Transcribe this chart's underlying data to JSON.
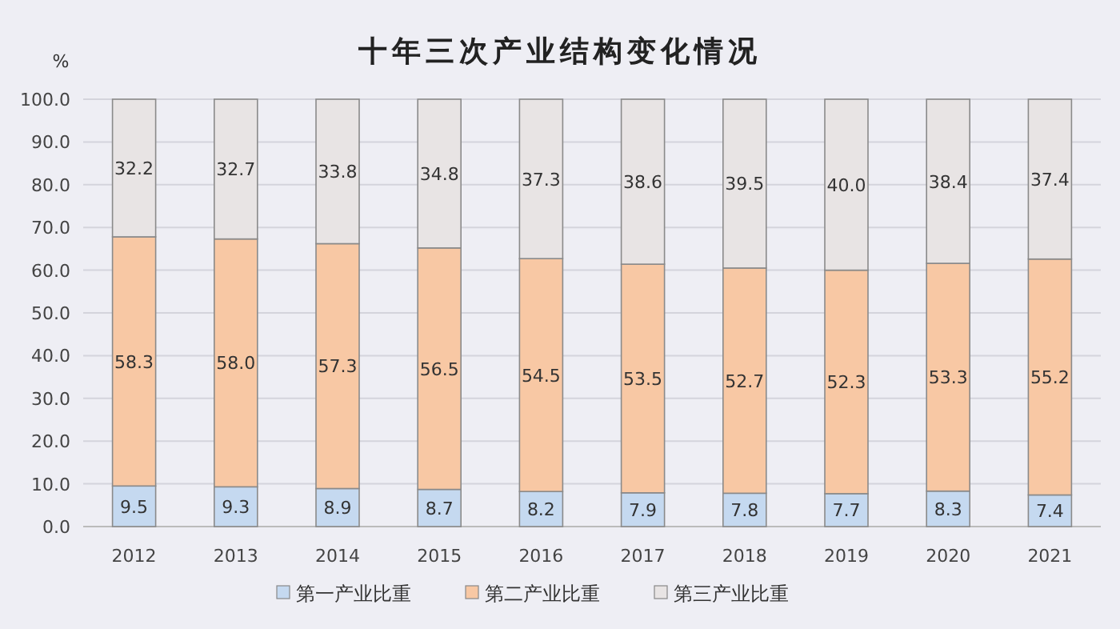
{
  "chart_data": {
    "type": "bar",
    "title": "十年三次产业结构变化情况",
    "ylabel": "%",
    "stacked": true,
    "grid": "y",
    "legend": "bottom",
    "categories": [
      "2012",
      "2013",
      "2014",
      "2015",
      "2016",
      "2017",
      "2018",
      "2019",
      "2020",
      "2021"
    ],
    "ylim": [
      0,
      100
    ],
    "yticks": [
      {
        "value": 0,
        "label": "0.0"
      },
      {
        "value": 10,
        "label": "10.0"
      },
      {
        "value": 20,
        "label": "20.0"
      },
      {
        "value": 30,
        "label": "30.0"
      },
      {
        "value": 40,
        "label": "40.0"
      },
      {
        "value": 50,
        "label": "50.0"
      },
      {
        "value": 60,
        "label": "60.0"
      },
      {
        "value": 70,
        "label": "70.0"
      },
      {
        "value": 80,
        "label": "80.0"
      },
      {
        "value": 90,
        "label": "90.0"
      },
      {
        "value": 100,
        "label": "100.0"
      }
    ],
    "series": [
      {
        "name": "第一产业比重",
        "color": "#c5d9f0",
        "values": [
          9.5,
          9.3,
          8.9,
          8.7,
          8.2,
          7.9,
          7.8,
          7.7,
          8.3,
          7.4
        ],
        "value_labels": [
          "9.5",
          "9.3",
          "8.9",
          "8.7",
          "8.2",
          "7.9",
          "7.8",
          "7.7",
          "8.3",
          "7.4"
        ]
      },
      {
        "name": "第二产业比重",
        "color": "#f8c8a4",
        "values": [
          58.3,
          58.0,
          57.3,
          56.5,
          54.5,
          53.5,
          52.7,
          52.3,
          53.3,
          55.2
        ],
        "value_labels": [
          "58.3",
          "58.0",
          "57.3",
          "56.5",
          "54.5",
          "53.5",
          "52.7",
          "52.3",
          "53.3",
          "55.2"
        ]
      },
      {
        "name": "第三产业比重",
        "color": "#e8e4e4",
        "values": [
          32.2,
          32.7,
          33.8,
          34.8,
          37.3,
          38.6,
          39.5,
          40.0,
          38.4,
          37.4
        ],
        "value_labels": [
          "32.2",
          "32.7",
          "33.8",
          "34.8",
          "37.3",
          "38.6",
          "39.5",
          "40.0",
          "38.4",
          "37.4"
        ]
      }
    ]
  }
}
